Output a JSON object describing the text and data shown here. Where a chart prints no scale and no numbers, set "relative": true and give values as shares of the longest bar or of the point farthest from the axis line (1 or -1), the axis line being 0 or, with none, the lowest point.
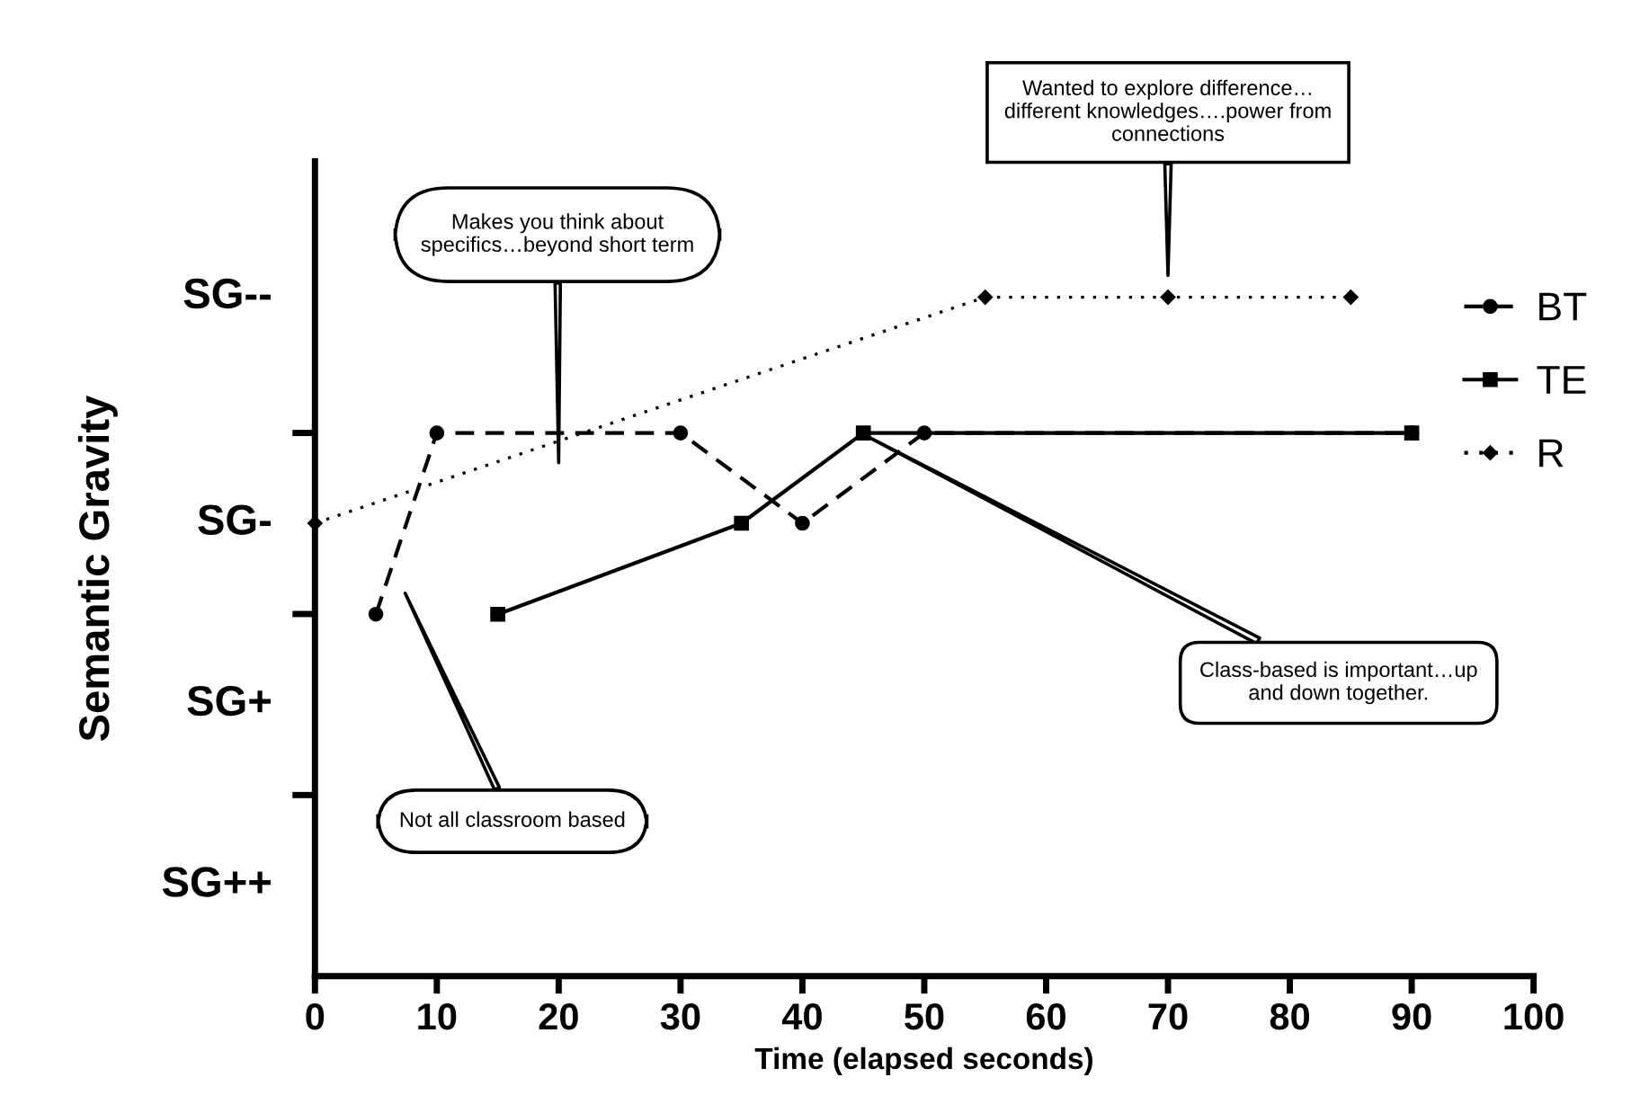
{
  "chart_data": {
    "type": "line",
    "relative": true,
    "xlabel": "Time (elapsed seconds)",
    "ylabel": "Semantic Gravity",
    "xlim": [
      0,
      100
    ],
    "xticks": [
      0,
      10,
      20,
      30,
      40,
      50,
      60,
      70,
      80,
      90,
      100
    ],
    "tick_labels": "x",
    "grid": false,
    "legend": "right",
    "series": [
      {
        "name": "BT",
        "color": "#000000",
        "marker": "circle",
        "line_style": "dashed",
        "x": [
          5,
          10,
          30,
          40,
          50,
          90
        ],
        "values": [
          0.533,
          0.8,
          0.8,
          0.667,
          0.8,
          0.8
        ]
      },
      {
        "name": "TE",
        "color": "#000000",
        "marker": "square",
        "line_style": "solid",
        "x": [
          15,
          35,
          45,
          90
        ],
        "values": [
          0.533,
          0.667,
          0.8,
          0.8
        ]
      },
      {
        "name": "R",
        "color": "#000000",
        "marker": "diamond",
        "line_style": "dotted",
        "x": [
          0,
          55,
          70,
          85
        ],
        "values": [
          0.667,
          1,
          1,
          1
        ]
      }
    ],
    "annotations": [
      "SG--",
      "SG-",
      "SG+",
      "SG++",
      "Makes you think about\nspecifics…beyond short term",
      "Wanted to explore difference…\ndifferent knowledges….power from\nconnections",
      "Class-based is important…up\nand down together.",
      "Not all classroom based"
    ]
  }
}
